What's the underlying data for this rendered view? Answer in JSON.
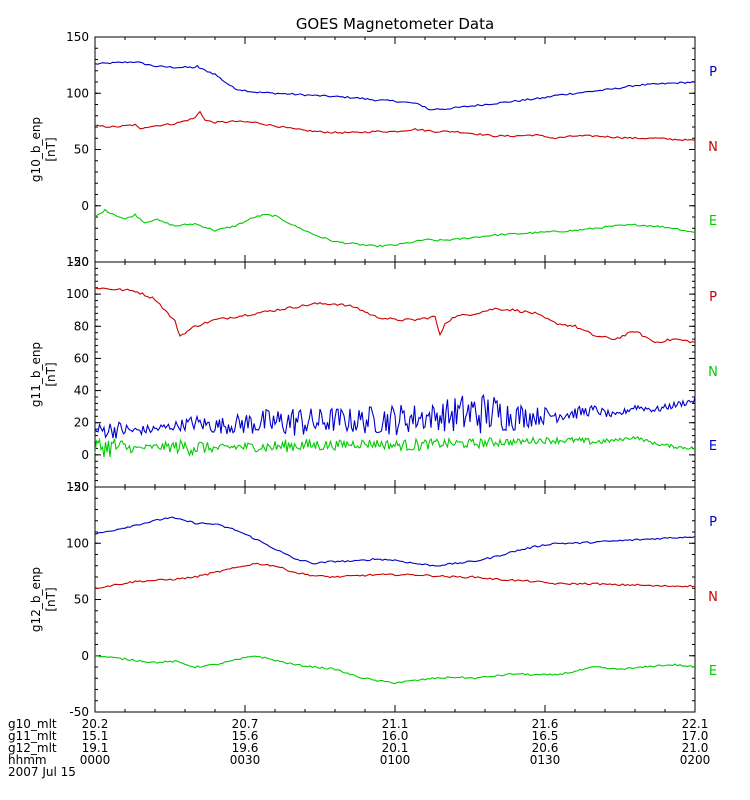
{
  "chart_data": {
    "type": "line",
    "title": "GOES Magnetometer Data",
    "x_unit": "minutes from 0000 UT",
    "xlim": [
      0,
      120
    ],
    "panels": [
      {
        "ylabel": "g10_b_enp",
        "yunit": "[nT]",
        "ylim": [
          -50,
          150
        ],
        "yticks": [
          -50,
          0,
          50,
          100,
          150
        ],
        "legend": [
          "P",
          "N",
          "E"
        ],
        "series": [
          {
            "name": "P",
            "color": "#0000cc",
            "x": [
              0,
              4,
              8,
              10,
              12,
              16,
              20,
              20.5,
              21,
              24,
              26,
              28,
              32,
              36,
              40,
              44,
              48,
              52,
              56,
              60,
              62,
              64,
              66,
              67,
              68,
              70,
              72,
              74,
              76,
              80,
              84,
              88,
              90,
              92,
              96,
              100,
              104,
              108,
              112,
              116,
              120
            ],
            "y": [
              126,
              127,
              128,
              126,
              124,
              123,
              123,
              124,
              122,
              117,
              110,
              104,
              101,
              100,
              99,
              98,
              97,
              96,
              94,
              93,
              92,
              91,
              88,
              85,
              86,
              86,
              87,
              88,
              89,
              91,
              93,
              95,
              96,
              98,
              100,
              102,
              104,
              107,
              108,
              109,
              110
            ]
          },
          {
            "name": "N",
            "color": "#cc0000",
            "x": [
              0,
              4,
              8,
              9,
              10,
              12,
              16,
              20,
              21,
              22,
              24,
              28,
              32,
              36,
              40,
              44,
              48,
              52,
              56,
              60,
              64,
              68,
              72,
              76,
              80,
              84,
              88,
              92,
              96,
              100,
              104,
              108,
              112,
              116,
              120
            ],
            "y": [
              71,
              70,
              72,
              68,
              70,
              71,
              73,
              78,
              84,
              76,
              74,
              75,
              74,
              71,
              68,
              66,
              65,
              65,
              66,
              66,
              68,
              66,
              66,
              64,
              62,
              62,
              63,
              60,
              62,
              62,
              61,
              60,
              60,
              59,
              58
            ]
          },
          {
            "name": "E",
            "color": "#00cc00",
            "x": [
              0,
              2,
              4,
              6,
              8,
              10,
              12,
              16,
              20,
              24,
              28,
              32,
              34,
              36,
              40,
              44,
              48,
              52,
              56,
              60,
              64,
              66,
              68,
              72,
              76,
              80,
              84,
              88,
              92,
              96,
              100,
              104,
              108,
              112,
              116,
              120
            ],
            "y": [
              -10,
              -4,
              -8,
              -12,
              -8,
              -15,
              -12,
              -18,
              -16,
              -22,
              -18,
              -10,
              -8,
              -9,
              -18,
              -26,
              -32,
              -34,
              -36,
              -35,
              -32,
              -30,
              -31,
              -30,
              -28,
              -26,
              -25,
              -24,
              -23,
              -22,
              -20,
              -18,
              -17,
              -18,
              -20,
              -24
            ]
          }
        ]
      },
      {
        "ylabel": "g11_b_enp",
        "yunit": "[nT]",
        "ylim": [
          -20,
          120
        ],
        "yticks": [
          -20,
          0,
          20,
          40,
          60,
          80,
          100,
          120
        ],
        "legend": [
          "P",
          "N",
          "E"
        ],
        "series": [
          {
            "name": "P",
            "color": "#cc0000",
            "x": [
              0,
              4,
              8,
              12,
              16,
              17,
              20,
              24,
              28,
              32,
              36,
              40,
              44,
              48,
              52,
              56,
              60,
              64,
              68,
              69,
              70,
              72,
              76,
              80,
              84,
              88,
              92,
              96,
              100,
              104,
              108,
              112,
              116,
              120
            ],
            "y": [
              104,
              103,
              102,
              97,
              83,
              74,
              80,
              84,
              86,
              88,
              90,
              92,
              94,
              94,
              92,
              86,
              84,
              84,
              86,
              74,
              82,
              86,
              88,
              91,
              90,
              88,
              82,
              80,
              74,
              72,
              77,
              70,
              72,
              70
            ]
          },
          {
            "name": "E",
            "color": "#0000cc",
            "x": [
              0,
              4,
              8,
              12,
              16,
              20,
              24,
              28,
              32,
              36,
              40,
              44,
              48,
              52,
              56,
              60,
              64,
              68,
              72,
              76,
              80,
              84,
              88,
              92,
              96,
              100,
              104,
              108,
              112,
              116,
              120
            ],
            "y": [
              15,
              16,
              15,
              16,
              18,
              20,
              18,
              19,
              20,
              20,
              21,
              20,
              22,
              21,
              22,
              22,
              23,
              24,
              25,
              26,
              26,
              24,
              24,
              25,
              26,
              28,
              24,
              30,
              28,
              31,
              34
            ],
            "jitter": [
              4,
              6,
              3,
              3,
              3,
              5,
              5,
              6,
              8,
              9,
              10,
              9,
              8,
              8,
              9,
              10,
              9,
              8,
              12,
              14,
              12,
              9,
              6,
              5,
              4,
              3,
              2,
              2,
              2,
              2,
              2
            ]
          },
          {
            "name": "N",
            "color": "#00cc00",
            "x": [
              0,
              4,
              8,
              12,
              16,
              20,
              24,
              28,
              32,
              36,
              40,
              44,
              48,
              52,
              56,
              60,
              64,
              68,
              72,
              76,
              80,
              84,
              88,
              92,
              96,
              100,
              104,
              108,
              112,
              116,
              120
            ],
            "y": [
              5,
              5,
              4,
              5,
              5,
              5,
              4,
              5,
              5,
              5,
              6,
              6,
              6,
              7,
              7,
              6,
              6,
              7,
              7,
              7,
              8,
              8,
              9,
              9,
              9,
              8,
              9,
              11,
              7,
              5,
              4
            ],
            "jitter": [
              6,
              7,
              2,
              2,
              4,
              6,
              2,
              3,
              3,
              4,
              4,
              4,
              3,
              3,
              3,
              3,
              4,
              3,
              3,
              3,
              3,
              2,
              2,
              2,
              2,
              2,
              1,
              1,
              1,
              1,
              1
            ]
          }
        ]
      },
      {
        "ylabel": "g12_b_enp",
        "yunit": "[nT]",
        "ylim": [
          -50,
          150
        ],
        "yticks": [
          -50,
          0,
          50,
          100,
          150
        ],
        "legend": [
          "P",
          "N",
          "E"
        ],
        "series": [
          {
            "name": "P",
            "color": "#0000cc",
            "x": [
              0,
              4,
              8,
              12,
              15,
              16,
              20,
              24,
              28,
              32,
              36,
              40,
              44,
              48,
              52,
              56,
              60,
              64,
              68,
              72,
              76,
              80,
              84,
              88,
              92,
              96,
              100,
              104,
              108,
              112,
              116,
              120
            ],
            "y": [
              108,
              112,
              116,
              120,
              123,
              122,
              118,
              117,
              112,
              104,
              95,
              86,
              82,
              84,
              84,
              86,
              85,
              82,
              80,
              82,
              84,
              88,
              93,
              97,
              100,
              100,
              101,
              102,
              103,
              104,
              105,
              106
            ]
          },
          {
            "name": "N",
            "color": "#cc0000",
            "x": [
              0,
              4,
              8,
              12,
              16,
              20,
              24,
              28,
              32,
              36,
              40,
              44,
              48,
              52,
              56,
              60,
              64,
              68,
              72,
              76,
              80,
              84,
              88,
              92,
              96,
              100,
              104,
              108,
              112,
              116,
              120
            ],
            "y": [
              60,
              63,
              66,
              67,
              68,
              70,
              74,
              78,
              82,
              80,
              74,
              71,
              70,
              71,
              72,
              72,
              72,
              71,
              70,
              70,
              68,
              67,
              66,
              64,
              64,
              64,
              63,
              63,
              62,
              62,
              62
            ]
          },
          {
            "name": "E",
            "color": "#00cc00",
            "x": [
              0,
              4,
              8,
              12,
              16,
              20,
              24,
              28,
              32,
              36,
              40,
              44,
              48,
              52,
              56,
              60,
              64,
              68,
              72,
              76,
              80,
              84,
              88,
              92,
              96,
              100,
              104,
              108,
              112,
              116,
              120
            ],
            "y": [
              0,
              -2,
              -4,
              -6,
              -5,
              -10,
              -8,
              -4,
              0,
              -4,
              -8,
              -10,
              -12,
              -18,
              -22,
              -24,
              -22,
              -20,
              -19,
              -20,
              -18,
              -16,
              -17,
              -17,
              -14,
              -10,
              -12,
              -11,
              -9,
              -8,
              -10
            ]
          }
        ]
      }
    ],
    "footer": {
      "rows": [
        {
          "label": "g10_mlt",
          "values": [
            "20.2",
            "20.7",
            "21.1",
            "21.6",
            "22.1"
          ]
        },
        {
          "label": "g11_mlt",
          "values": [
            "15.1",
            "15.6",
            "16.0",
            "16.5",
            "17.0"
          ]
        },
        {
          "label": "g12_mlt",
          "values": [
            "19.1",
            "19.6",
            "20.1",
            "20.6",
            "21.0"
          ]
        },
        {
          "label": "hhmm",
          "values": [
            "0000",
            "0030",
            "0100",
            "0130",
            "0200"
          ]
        }
      ],
      "tick_minutes": [
        0,
        30,
        60,
        90,
        120
      ],
      "date": "2007 Jul 15"
    }
  }
}
